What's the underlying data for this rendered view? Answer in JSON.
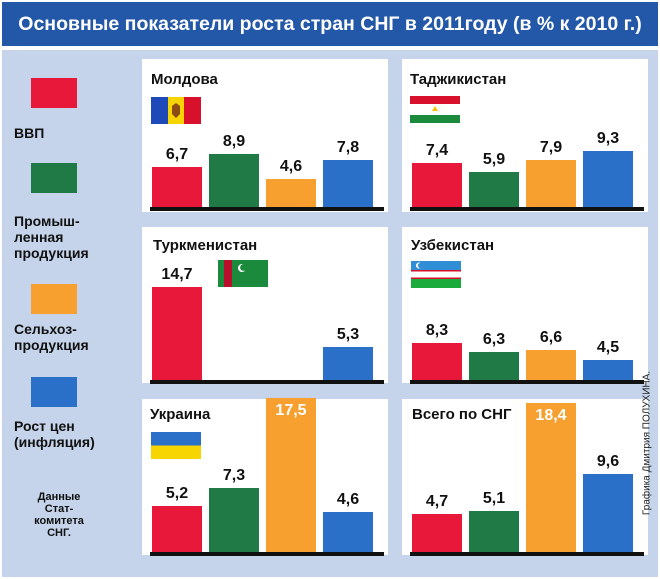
{
  "title": "Основные показатели роста стран СНГ в 2011году (в % к 2010 г.)",
  "legend": [
    {
      "lines": [
        "ВВП"
      ],
      "color": "#e8183a"
    },
    {
      "lines": [
        "Промыш-",
        "ленная",
        "продукция"
      ],
      "color": "#1f7a45"
    },
    {
      "lines": [
        "Сельхоз-",
        "продукция"
      ],
      "color": "#f7a030"
    },
    {
      "lines": [
        "Рост цен",
        "(инфляция)"
      ],
      "color": "#2a6fc8"
    }
  ],
  "source_lines": [
    "Данные",
    "Стат-",
    "комитета",
    "СНГ."
  ],
  "credit": "Графика Дмитрия ПОЛУХИНА.",
  "colors": {
    "title_bg": "#2357a8",
    "panel_area": "#c5d4ea",
    "gdp": "#e8183a",
    "industry": "#1f7a45",
    "agriculture": "#f7a030",
    "inflation": "#2a6fc8"
  },
  "chart_data": [
    {
      "type": "bar",
      "title": "Молдова",
      "flag": "moldova-flag",
      "categories": [
        "ВВП",
        "Промышленная продукция",
        "Сельхозпродукция",
        "Рост цен (инфляция)"
      ],
      "values": [
        6.7,
        8.9,
        4.6,
        7.8
      ],
      "value_labels": [
        "6,7",
        "8,9",
        "4,6",
        "7,8"
      ]
    },
    {
      "type": "bar",
      "title": "Таджикистан",
      "flag": "tajikistan-flag",
      "categories": [
        "ВВП",
        "Промышленная продукция",
        "Сельхозпродукция",
        "Рост цен (инфляция)"
      ],
      "values": [
        7.4,
        5.9,
        7.9,
        9.3
      ],
      "value_labels": [
        "7,4",
        "5,9",
        "7,9",
        "9,3"
      ]
    },
    {
      "type": "bar",
      "title": "Туркменистан",
      "flag": "turkmenistan-flag",
      "categories": [
        "ВВП",
        "Промышленная продукция",
        "Сельхозпродукция",
        "Рост цен (инфляция)"
      ],
      "values": [
        14.7,
        null,
        null,
        5.3
      ],
      "value_labels": [
        "14,7",
        "",
        "",
        "5,3"
      ]
    },
    {
      "type": "bar",
      "title": "Узбекистан",
      "flag": "uzbekistan-flag",
      "categories": [
        "ВВП",
        "Промышленная продукция",
        "Сельхозпродукция",
        "Рост цен (инфляция)"
      ],
      "values": [
        8.3,
        6.3,
        6.6,
        4.5
      ],
      "value_labels": [
        "8,3",
        "6,3",
        "6,6",
        "4,5"
      ]
    },
    {
      "type": "bar",
      "title": "Украина",
      "flag": "ukraine-flag",
      "categories": [
        "ВВП",
        "Промышленная продукция",
        "Сельхозпродукция",
        "Рост цен (инфляция)"
      ],
      "values": [
        5.2,
        7.3,
        17.5,
        4.6
      ],
      "value_labels": [
        "5,2",
        "7,3",
        "17,5",
        "4,6"
      ]
    },
    {
      "type": "bar",
      "title": "Всего по СНГ",
      "flag": null,
      "categories": [
        "ВВП",
        "Промышленная продукция",
        "Сельхозпродукция",
        "Рост цен (инфляция)"
      ],
      "values": [
        4.7,
        5.1,
        18.4,
        9.6
      ],
      "value_labels": [
        "4,7",
        "5,1",
        "18,4",
        "9,6"
      ]
    }
  ]
}
